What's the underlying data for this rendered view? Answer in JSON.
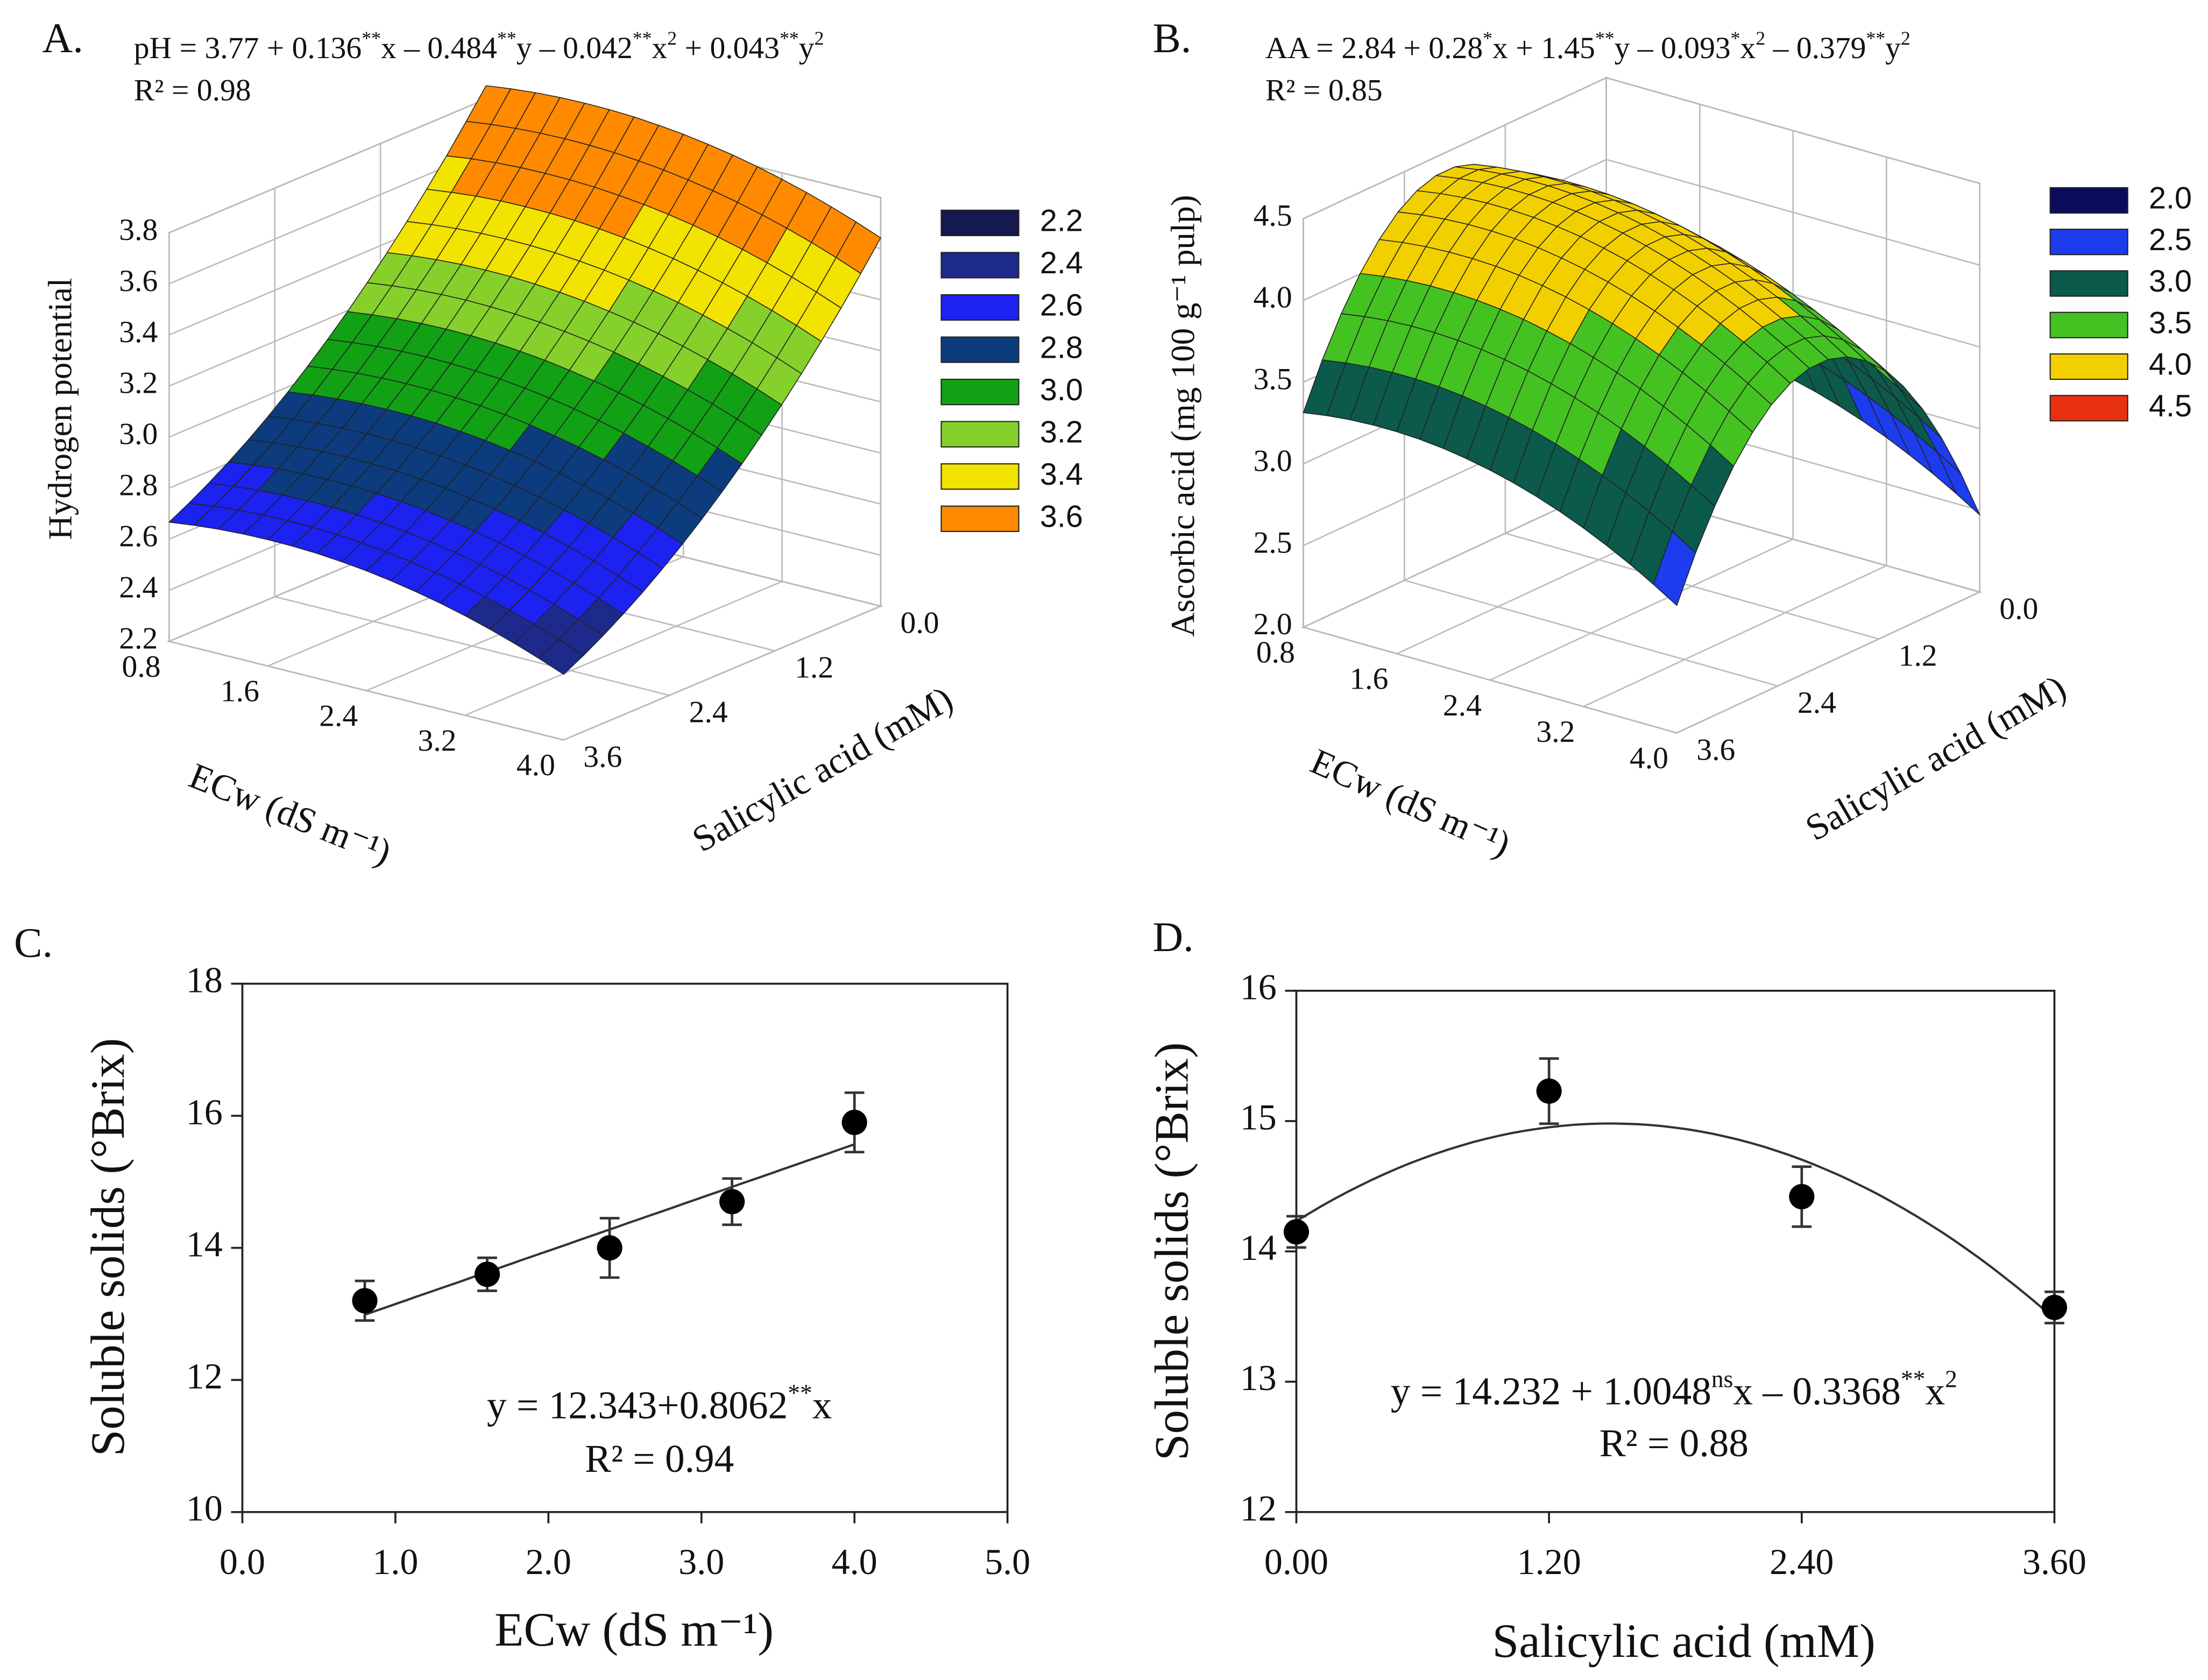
{
  "chart_data": [
    {
      "type": "surface3d",
      "panel": "A.",
      "equation": [
        "pH = 3.77 + 0.136",
        "**",
        "x – 0.484",
        "**",
        "y – 0.042",
        "**",
        "x",
        "2",
        " + 0.043",
        "**",
        "y",
        "2"
      ],
      "r2": "R² = 0.98",
      "zlabel": "Hydrogen potential",
      "xlabel": "ECw (dS m⁻¹)",
      "ylabel": "Salicylic acid (mM)",
      "model": {
        "intercept": 3.77,
        "x": 0.136,
        "y": -0.484,
        "x2": -0.042,
        "y2": 0.043
      },
      "xlim": [
        0.8,
        4.0
      ],
      "ylim": [
        0,
        3.6
      ],
      "zlim": [
        2.2,
        3.8
      ],
      "xticks": [
        0.8,
        1.6,
        2.4,
        3.2,
        {
          "value": 4,
          "label": "4.0"
        }
      ],
      "yticks": [
        {
          "value": 0,
          "label": "0.0"
        },
        1.2,
        2.4,
        3.6
      ],
      "zticks": [
        2.2,
        2.4,
        2.6,
        2.8,
        {
          "value": 3,
          "label": "3.0"
        },
        3.2,
        3.4,
        3.6,
        3.8
      ],
      "legend": {
        "levels": [
          2.2,
          2.4,
          2.6,
          2.8,
          {
            "value": 3,
            "label": "3.0"
          },
          3.2,
          3.4,
          3.6
        ],
        "colors": [
          "#16184f",
          "#1d2a8c",
          "#1c22f0",
          "#0c3c7e",
          "#12a015",
          "#86d02c",
          "#f2e300",
          "#ff8a00"
        ]
      }
    },
    {
      "type": "surface3d",
      "panel": "B.",
      "equation": [
        "AA = 2.84 + 0.28",
        "*",
        "x + 1.45",
        "**",
        "y – 0.093",
        "*",
        "x",
        "2",
        " – 0.379",
        "**",
        "y",
        "2"
      ],
      "r2": "R² = 0.85",
      "zlabel": "Ascorbic acid (mg 100 g⁻¹ pulp)",
      "xlabel": "ECw (dS m⁻¹)",
      "ylabel": "Salicylic acid (mM)",
      "model": {
        "intercept": 2.84,
        "x": 0.28,
        "y": 1.45,
        "x2": -0.093,
        "y2": -0.379
      },
      "xlim": [
        0.8,
        4.0
      ],
      "ylim": [
        0,
        3.6
      ],
      "zlim": [
        2.0,
        4.5
      ],
      "xticks": [
        0.8,
        1.6,
        2.4,
        3.2,
        {
          "value": 4,
          "label": "4.0"
        }
      ],
      "yticks": [
        {
          "value": 0,
          "label": "0.0"
        },
        1.2,
        2.4,
        3.6
      ],
      "zticks": [
        {
          "value": 2,
          "label": "2.0"
        },
        2.5,
        {
          "value": 3,
          "label": "3.0"
        },
        3.5,
        {
          "value": 4,
          "label": "4.0"
        },
        4.5
      ],
      "legend": {
        "levels": [
          {
            "value": 2,
            "label": "2.0"
          },
          2.5,
          {
            "value": 3,
            "label": "3.0"
          },
          3.5,
          {
            "value": 4,
            "label": "4.0"
          },
          4.5
        ],
        "colors": [
          "#0c0c5c",
          "#1c3cee",
          "#0b5a4c",
          "#44c222",
          "#f2d000",
          "#e8320f"
        ]
      }
    },
    {
      "type": "scatter",
      "panel": "C.",
      "x": [
        0.8,
        1.6,
        2.4,
        3.2,
        4.0
      ],
      "values": [
        13.2,
        13.6,
        14.0,
        14.7,
        15.9
      ],
      "errors": [
        0.3,
        0.25,
        0.45,
        0.35,
        0.45
      ],
      "fit": {
        "intercept": 12.343,
        "x": 0.8062
      },
      "equation": [
        "y =  12.343+0.8062",
        "**",
        "x"
      ],
      "r2": "R² = 0.94",
      "xlabel": "ECw (dS m⁻¹)",
      "ylabel": "Soluble solids (°Brix)",
      "xlim": [
        0,
        5
      ],
      "ylim": [
        10,
        18
      ],
      "xticks": [
        {
          "value": 0,
          "label": "0.0"
        },
        {
          "value": 1,
          "label": "1.0"
        },
        {
          "value": 2,
          "label": "2.0"
        },
        {
          "value": 3,
          "label": "3.0"
        },
        {
          "value": 4,
          "label": "4.0"
        },
        {
          "value": 5,
          "label": "5.0"
        }
      ],
      "yticks": [
        10,
        12,
        14,
        16,
        18
      ]
    },
    {
      "type": "scatter",
      "panel": "D.",
      "x": [
        0,
        1.2,
        2.4,
        3.6
      ],
      "values": [
        14.15,
        15.23,
        14.42,
        13.57
      ],
      "errors": [
        0.12,
        0.25,
        0.23,
        0.12
      ],
      "fit": {
        "intercept": 14.232,
        "x": 1.0048,
        "x2": -0.3368
      },
      "equation": [
        "y = 14.232 + 1.0048",
        "ns",
        "x – 0.3368",
        "**",
        "x",
        "2"
      ],
      "r2": "R² = 0.88",
      "xlabel": "Salicylic acid (mM)",
      "ylabel": "Soluble solids (°Brix)",
      "xlim": [
        0,
        3.6
      ],
      "ylim": [
        12,
        16
      ],
      "xticks": [
        {
          "value": 0,
          "label": "0.00"
        },
        {
          "value": 1.2,
          "label": "1.20"
        },
        {
          "value": 2.4,
          "label": "2.40"
        },
        {
          "value": 3.6,
          "label": "3.60"
        }
      ],
      "yticks": [
        12,
        13,
        14,
        15,
        16
      ]
    }
  ]
}
